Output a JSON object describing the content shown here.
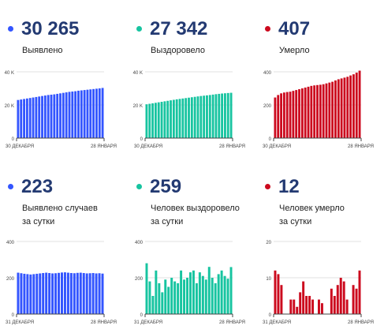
{
  "colors": {
    "blue": "#3355ff",
    "teal": "#17c4a0",
    "red": "#cc0a1e",
    "value": "#233a72",
    "axis": "#444444",
    "grid": "#e2e2e2"
  },
  "panels": [
    {
      "value": "30 265",
      "label_lines": [
        "Выявлено"
      ],
      "color": "#3355ff"
    },
    {
      "value": "27 342",
      "label_lines": [
        "Выздоровело"
      ],
      "color": "#17c4a0"
    },
    {
      "value": "407",
      "label_lines": [
        "Умерло"
      ],
      "color": "#cc0a1e"
    },
    {
      "value": "223",
      "label_lines": [
        "Выявлено случаев",
        "за сутки"
      ],
      "color": "#3355ff"
    },
    {
      "value": "259",
      "label_lines": [
        "Человек выздоровело",
        "за сутки"
      ],
      "color": "#17c4a0"
    },
    {
      "value": "12",
      "label_lines": [
        "Человек умерло",
        "за сутки"
      ],
      "color": "#cc0a1e"
    }
  ],
  "chart_data": [
    {
      "type": "bar",
      "x_start_label": "30 ДЕКАБРЯ",
      "x_end_label": "28 ЯНВАРЯ",
      "ylim": [
        0,
        40000
      ],
      "yticks": [
        0,
        20000,
        40000
      ],
      "ytick_labels": [
        "0",
        "20 K",
        "40 K"
      ],
      "values": [
        23000,
        23300,
        23600,
        23900,
        24200,
        24500,
        24800,
        25100,
        25400,
        25700,
        26000,
        26200,
        26400,
        26700,
        27000,
        27300,
        27600,
        27900,
        28100,
        28300,
        28600,
        28800,
        29000,
        29200,
        29400,
        29600,
        29800,
        30000,
        30265
      ]
    },
    {
      "type": "bar",
      "x_start_label": "30 ДЕКАБРЯ",
      "x_end_label": "28 ЯНВАРЯ",
      "ylim": [
        0,
        40000
      ],
      "yticks": [
        0,
        20000,
        40000
      ],
      "ytick_labels": [
        "0",
        "20 K",
        "40 K"
      ],
      "values": [
        20400,
        20700,
        21000,
        21300,
        21600,
        21900,
        22200,
        22500,
        22800,
        23100,
        23400,
        23650,
        23900,
        24150,
        24400,
        24650,
        24900,
        25150,
        25400,
        25600,
        25800,
        26000,
        26250,
        26500,
        26700,
        26900,
        27050,
        27200,
        27342
      ]
    },
    {
      "type": "bar",
      "x_start_label": "30 ДЕКАБРЯ",
      "x_end_label": "28 ЯНВАРЯ",
      "ylim": [
        0,
        400
      ],
      "yticks": [
        0,
        200,
        400
      ],
      "ytick_labels": [
        "0",
        "200",
        "400"
      ],
      "values": [
        245,
        260,
        270,
        275,
        278,
        280,
        285,
        290,
        295,
        300,
        305,
        310,
        315,
        318,
        320,
        322,
        325,
        330,
        335,
        340,
        348,
        355,
        360,
        365,
        370,
        378,
        385,
        395,
        407
      ]
    },
    {
      "type": "bar",
      "x_start_label": "31 ДЕКАБРЯ",
      "x_end_label": "28 ЯНВАРЯ",
      "ylim": [
        0,
        400
      ],
      "yticks": [
        0,
        200,
        400
      ],
      "ytick_labels": [
        "0",
        "200",
        "400"
      ],
      "values": [
        228,
        225,
        222,
        220,
        218,
        220,
        222,
        224,
        226,
        228,
        226,
        224,
        225,
        227,
        229,
        230,
        228,
        226,
        225,
        227,
        228,
        226,
        224,
        225,
        226,
        224,
        225,
        223
      ]
    },
    {
      "type": "bar",
      "x_start_label": "31 ДЕКАБРЯ",
      "x_end_label": "28 ЯНВАРЯ",
      "ylim": [
        0,
        400
      ],
      "yticks": [
        0,
        200,
        400
      ],
      "ytick_labels": [
        "0",
        "200",
        "400"
      ],
      "values": [
        280,
        180,
        100,
        240,
        170,
        120,
        190,
        150,
        200,
        180,
        170,
        240,
        190,
        200,
        230,
        240,
        170,
        230,
        210,
        190,
        260,
        200,
        170,
        220,
        240,
        210,
        195,
        259
      ]
    },
    {
      "type": "bar",
      "x_start_label": "31 ДЕКАБРЯ",
      "x_end_label": "28 ЯНВАРЯ",
      "ylim": [
        0,
        20
      ],
      "yticks": [
        0,
        10,
        20
      ],
      "ytick_labels": [
        "0",
        "10",
        "20"
      ],
      "values": [
        12,
        11,
        8,
        0,
        0,
        4,
        4,
        2,
        6,
        9,
        5,
        5,
        4,
        0,
        4,
        3,
        0,
        0,
        7,
        5,
        8,
        10,
        9,
        4,
        0,
        8,
        7,
        12
      ]
    }
  ]
}
